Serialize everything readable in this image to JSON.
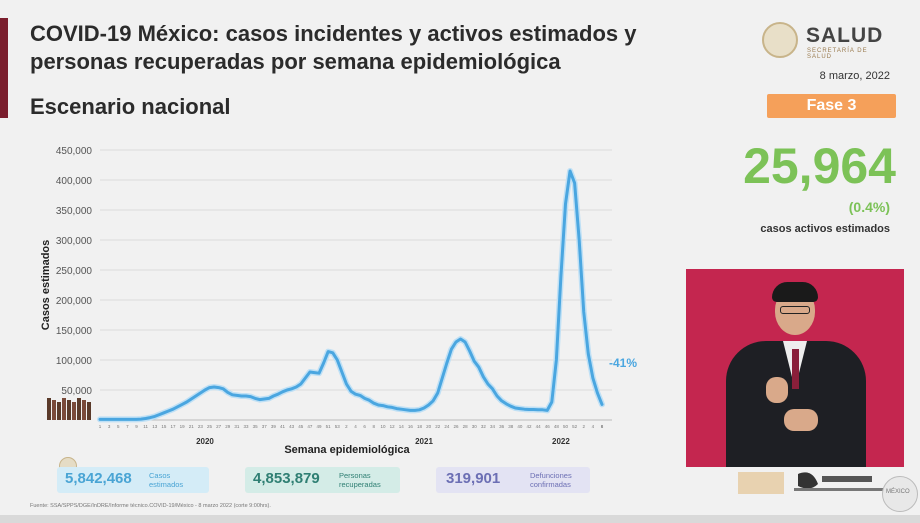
{
  "header": {
    "title": "COVID-19 México: casos incidentes y activos estimados y personas recuperadas por semana epidemiológica",
    "subtitle": "Escenario nacional",
    "date": "8 marzo, 2022",
    "phase": "Fase 3"
  },
  "logo": {
    "name": "SALUD",
    "tagline": "SECRETARÍA DE SALUD"
  },
  "active": {
    "value": "25,964",
    "percent": "(0.4%)",
    "label": "casos activos estimados"
  },
  "stats": [
    {
      "value": "5,842,468",
      "label_line1": "Casos",
      "label_line2": "estimados"
    },
    {
      "value": "4,853,879",
      "label_line1": "Personas",
      "label_line2": "recuperadas"
    },
    {
      "value": "319,901",
      "label_line1": "Defunciones",
      "label_line2": "confirmadas"
    }
  ],
  "source": "Fuente: SSA/SPPS/DGE/InDRE/Informe técnico.COVID-19/México - 8 marzo 2022 (corte 9:00hrs).",
  "footer_logo": {
    "seal_text": "MÉXICO"
  },
  "chart_data": {
    "type": "area",
    "xlabel": "Semana epidemiológica",
    "ylabel": "Casos estimados",
    "ylim": [
      0,
      450000
    ],
    "yticks": [
      50000,
      100000,
      150000,
      200000,
      250000,
      300000,
      350000,
      400000,
      450000
    ],
    "ytick_labels": [
      "50,000",
      "100,000",
      "150,000",
      "200,000",
      "250,000",
      "300,000",
      "350,000",
      "400,000",
      "450,000"
    ],
    "year_labels": [
      {
        "label": "2020",
        "index": 23
      },
      {
        "label": "2021",
        "index": 71
      },
      {
        "label": "2022",
        "index": 101
      }
    ],
    "week_labels": [
      "1",
      "3",
      "5",
      "7",
      "9",
      "11",
      "13",
      "15",
      "17",
      "19",
      "21",
      "23",
      "25",
      "27",
      "29",
      "31",
      "33",
      "35",
      "37",
      "39",
      "41",
      "43",
      "45",
      "47",
      "49",
      "51",
      "53",
      "2",
      "4",
      "6",
      "8",
      "10",
      "12",
      "14",
      "16",
      "18",
      "20",
      "22",
      "24",
      "26",
      "28",
      "30",
      "32",
      "34",
      "36",
      "38",
      "40",
      "42",
      "44",
      "46",
      "48",
      "50",
      "52",
      "2",
      "4",
      "6",
      "8"
    ],
    "annotation": "-41%",
    "series": [
      {
        "color": "#4aa6e0",
        "values": [
          1000,
          1000,
          1000,
          1000,
          1000,
          1000,
          1000,
          1000,
          1000,
          1500,
          2500,
          4000,
          6000,
          9000,
          12000,
          15000,
          18000,
          22000,
          26000,
          30000,
          35000,
          40000,
          45000,
          50000,
          54000,
          55000,
          54000,
          52000,
          46000,
          42000,
          41000,
          40000,
          40000,
          39000,
          36000,
          34000,
          35000,
          36000,
          40000,
          43000,
          47000,
          50000,
          52000,
          55000,
          60000,
          70000,
          80000,
          79000,
          78000,
          95000,
          114000,
          112000,
          100000,
          80000,
          60000,
          48000,
          43000,
          41000,
          36000,
          33000,
          28000,
          25000,
          24000,
          22000,
          21000,
          19000,
          18000,
          17000,
          16000,
          16000,
          17000,
          20000,
          25000,
          32000,
          45000,
          70000,
          95000,
          118000,
          130000,
          135000,
          130000,
          115000,
          98000,
          88000,
          72000,
          60000,
          52000,
          40000,
          32000,
          27000,
          23000,
          20000,
          19000,
          18000,
          17500,
          17500,
          17000,
          17000,
          16000,
          30000,
          100000,
          240000,
          360000,
          415000,
          395000,
          300000,
          180000,
          110000,
          70000,
          45000,
          26000
        ]
      }
    ]
  }
}
